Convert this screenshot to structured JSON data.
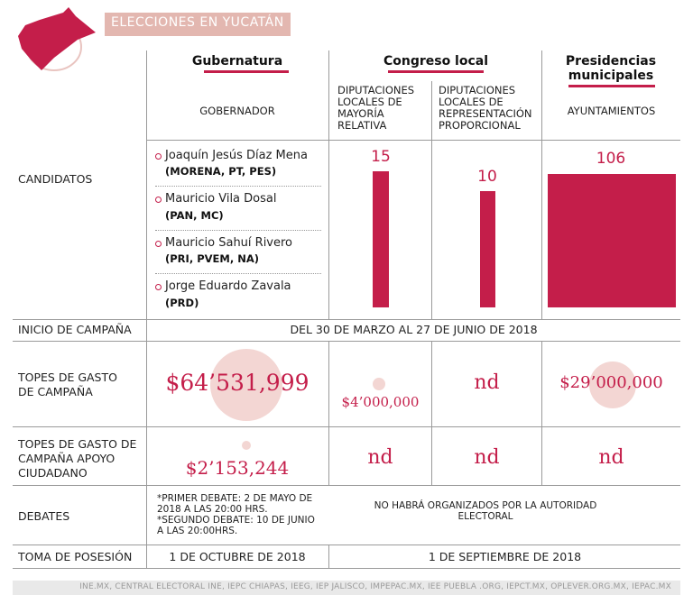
{
  "title": "ELECCIONES EN YUCATÁN",
  "colors": {
    "accent": "#c41e4a",
    "bubble": "#f3d6d3",
    "title_bg": "#e3b7b0"
  },
  "columns": {
    "gubernatura": {
      "title": "Gubernatura",
      "sub": "GOBERNADOR"
    },
    "congreso": {
      "title": "Congreso local",
      "sub_mr": "DIPUTACIONES LOCALES DE MAYORÍA RELATIVA",
      "sub_rp": "DIPUTACIONES LOCALES DE REPRESENTACIÓN PROPORCIONAL"
    },
    "presidencias": {
      "title": "Presidencias municipales",
      "sub": "AYUNTAMIENTOS"
    }
  },
  "rows": {
    "candidatos": "CANDIDATOS",
    "inicio": "INICIO DE CAMPAÑA",
    "topes": "TOPES DE GASTO DE CAMPAÑA",
    "topes_apoyo": "TOPES DE GASTO DE CAMPAÑA APOYO CIUDADANO",
    "debates": "DEBATES",
    "toma": "TOMA DE POSESIÓN"
  },
  "candidates": [
    {
      "name": "Joaquín Jesús Díaz Mena",
      "party": "(MORENA, PT, PES)"
    },
    {
      "name": "Mauricio Vila Dosal",
      "party": "(PAN, MC)"
    },
    {
      "name": "Mauricio Sahuí Rivero",
      "party": "(PRI, PVEM, NA)"
    },
    {
      "name": "Jorge Eduardo Zavala",
      "party": "(PRD)"
    }
  ],
  "counts": {
    "mayoria_relativa": "15",
    "representacion_proporcional": "10",
    "ayuntamientos": "106"
  },
  "inicio_campana": "DEL 30 DE MARZO AL 27 DE JUNIO DE 2018",
  "topes_gasto": {
    "gubernatura": "$64’531,999",
    "mayoria_relativa": "$4’000,000",
    "representacion_proporcional": "nd",
    "ayuntamientos": "$29’000,000"
  },
  "topes_apoyo": {
    "gubernatura": "$2’153,244",
    "mayoria_relativa": "nd",
    "representacion_proporcional": "nd",
    "ayuntamientos": "nd"
  },
  "debates": {
    "gubernatura": "*PRIMER DEBATE: 2 DE MAYO DE 2018 A LAS 20:00 HRS. *SEGUNDO DEBATE: 10 DE JUNIO A LAS 20:00HRS.",
    "resto": "NO HABRÁ ORGANIZADOS POR LA AUTORIDAD ELECTORAL"
  },
  "toma_posesion": {
    "gubernatura": "1 DE OCTUBRE DE 2018",
    "resto": "1 DE SEPTIEMBRE DE 2018"
  },
  "source": "INE.MX, CENTRAL ELECTORAL INE, IEPC CHIAPAS, IEEG, IEP JALISCO, IMPEPAC.MX, IEE PUEBLA .ORG, IEPCT.MX, OPLEVER.ORG.MX, IEPAC.MX"
}
